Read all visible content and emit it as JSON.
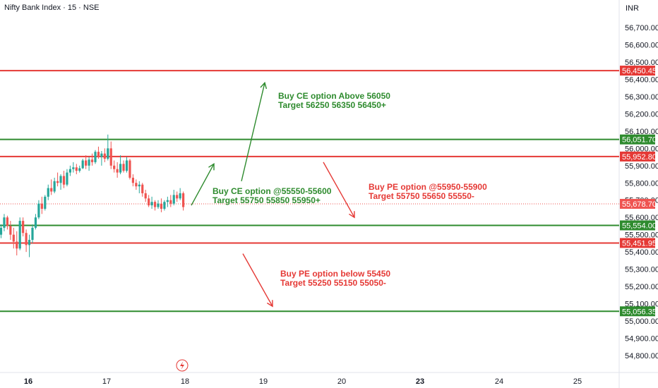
{
  "header": {
    "title": "Nifty Bank Index · 15 · NSE",
    "currency": "INR"
  },
  "colors": {
    "up": "#26a69a",
    "down": "#ef5350",
    "support": "#2e8b2e",
    "resistance": "#e53935",
    "last": "#ef5350",
    "axis": "#131722",
    "grid": "#e0e3eb"
  },
  "chart_data": {
    "type": "candlestick",
    "title": "Nifty Bank Index · 15 · NSE",
    "ylim": [
      54720,
      56800
    ],
    "y_ticks": [
      56700,
      56600,
      56500,
      56400,
      56300,
      56200,
      56100,
      56000,
      55900,
      55800,
      55700,
      55600,
      55500,
      55400,
      55300,
      55200,
      55100,
      55000,
      54900,
      54800
    ],
    "y_tick_labels": [
      "56,700.00",
      "56,600.00",
      "56,500.00",
      "56,400.00",
      "56,300.00",
      "56,200.00",
      "56,100.00",
      "56,000.00",
      "55,900.00",
      "55,800.00",
      "55,700.00",
      "55,600.00",
      "55,500.00",
      "55,400.00",
      "55,300.00",
      "55,200.00",
      "55,100.00",
      "55,000.00",
      "54,900.00",
      "54,800.00"
    ],
    "x_ticks": [
      {
        "label": "16",
        "bold": true
      },
      {
        "label": "17",
        "bold": false
      },
      {
        "label": "18",
        "bold": false
      },
      {
        "label": "19",
        "bold": false
      },
      {
        "label": "20",
        "bold": false
      },
      {
        "label": "23",
        "bold": true
      },
      {
        "label": "24",
        "bold": false
      },
      {
        "label": "25",
        "bold": false
      }
    ],
    "levels": [
      {
        "value": 56450.45,
        "label": "56,450.45",
        "kind": "resistance"
      },
      {
        "value": 56051.7,
        "label": "56,051.70",
        "kind": "support"
      },
      {
        "value": 55952.8,
        "label": "55,952.80",
        "kind": "resistance"
      },
      {
        "value": 55554.0,
        "label": "55,554.00",
        "kind": "support"
      },
      {
        "value": 55451.95,
        "label": "55,451.95",
        "kind": "resistance"
      },
      {
        "value": 55056.35,
        "label": "55,056.35",
        "kind": "support"
      }
    ],
    "last_price": {
      "value": 55678.7,
      "label": "55,678.70"
    },
    "candles": [
      [
        55500,
        55560,
        55480,
        55540
      ],
      [
        55540,
        55620,
        55520,
        55600
      ],
      [
        55600,
        55610,
        55530,
        55550
      ],
      [
        55550,
        55580,
        55470,
        55500
      ],
      [
        55500,
        55540,
        55420,
        55460
      ],
      [
        55460,
        55520,
        55380,
        55420
      ],
      [
        55420,
        55600,
        55410,
        55580
      ],
      [
        55580,
        55600,
        55490,
        55510
      ],
      [
        55510,
        55530,
        55400,
        55440
      ],
      [
        55440,
        55500,
        55370,
        55470
      ],
      [
        55470,
        55560,
        55450,
        55540
      ],
      [
        55540,
        55620,
        55530,
        55600
      ],
      [
        55600,
        55700,
        55590,
        55680
      ],
      [
        55680,
        55720,
        55620,
        55650
      ],
      [
        55650,
        55730,
        55640,
        55720
      ],
      [
        55720,
        55790,
        55700,
        55770
      ],
      [
        55770,
        55820,
        55730,
        55750
      ],
      [
        55750,
        55830,
        55740,
        55810
      ],
      [
        55810,
        55860,
        55780,
        55800
      ],
      [
        55800,
        55850,
        55760,
        55840
      ],
      [
        55840,
        55870,
        55770,
        55790
      ],
      [
        55790,
        55880,
        55780,
        55860
      ],
      [
        55860,
        55900,
        55840,
        55880
      ],
      [
        55880,
        55920,
        55860,
        55890
      ],
      [
        55890,
        55910,
        55850,
        55870
      ],
      [
        55870,
        55900,
        55860,
        55885
      ],
      [
        55885,
        55940,
        55880,
        55930
      ],
      [
        55930,
        55960,
        55880,
        55900
      ],
      [
        55900,
        55950,
        55870,
        55935
      ],
      [
        55935,
        55970,
        55900,
        55920
      ],
      [
        55920,
        55990,
        55910,
        55980
      ],
      [
        55980,
        56010,
        55940,
        55950
      ],
      [
        55950,
        55985,
        55900,
        55970
      ],
      [
        55970,
        56000,
        55920,
        55940
      ],
      [
        55940,
        56080,
        55930,
        56000
      ],
      [
        56000,
        56040,
        55880,
        55900
      ],
      [
        55900,
        55930,
        55860,
        55880
      ],
      [
        55880,
        55920,
        55830,
        55860
      ],
      [
        55860,
        55960,
        55850,
        55910
      ],
      [
        55910,
        55930,
        55860,
        55870
      ],
      [
        55870,
        55950,
        55860,
        55930
      ],
      [
        55930,
        55940,
        55820,
        55830
      ],
      [
        55830,
        55850,
        55780,
        55800
      ],
      [
        55800,
        55820,
        55760,
        55780
      ],
      [
        55780,
        55810,
        55740,
        55790
      ],
      [
        55790,
        55800,
        55720,
        55740
      ],
      [
        55740,
        55760,
        55690,
        55710
      ],
      [
        55710,
        55730,
        55660,
        55670
      ],
      [
        55670,
        55720,
        55650,
        55690
      ],
      [
        55690,
        55700,
        55640,
        55660
      ],
      [
        55660,
        55700,
        55650,
        55680
      ],
      [
        55680,
        55710,
        55630,
        55650
      ],
      [
        55650,
        55700,
        55640,
        55690
      ],
      [
        55690,
        55720,
        55660,
        55700
      ],
      [
        55700,
        55730,
        55660,
        55680
      ],
      [
        55680,
        55760,
        55670,
        55730
      ],
      [
        55730,
        55750,
        55690,
        55710
      ],
      [
        55710,
        55770,
        55700,
        55740
      ],
      [
        55740,
        55750,
        55640,
        55660
      ]
    ],
    "annotations": [
      {
        "lines": [
          "Buy CE option Above 56050",
          "Target 56250 56350 56450+"
        ],
        "color": "support"
      },
      {
        "lines": [
          "Buy CE option @55550-55600",
          "Target 55750 55850 55950+"
        ],
        "color": "support"
      },
      {
        "lines": [
          "Buy PE option @55950-55900",
          "Target 55750 55650 55550-"
        ],
        "color": "resistance"
      },
      {
        "lines": [
          "Buy PE option below 55450",
          "Target 55250 55150 55050-"
        ],
        "color": "resistance"
      }
    ],
    "arrows": [
      {
        "from": [
          55810,
          0
        ],
        "to": [
          56380,
          0
        ],
        "color": "support"
      },
      {
        "from": [
          55670,
          0
        ],
        "to": [
          55910,
          0
        ],
        "color": "support"
      },
      {
        "from": [
          55920,
          0
        ],
        "to": [
          55600,
          0
        ],
        "color": "resistance"
      },
      {
        "from": [
          55390,
          0
        ],
        "to": [
          55085,
          0
        ],
        "color": "resistance"
      }
    ]
  }
}
